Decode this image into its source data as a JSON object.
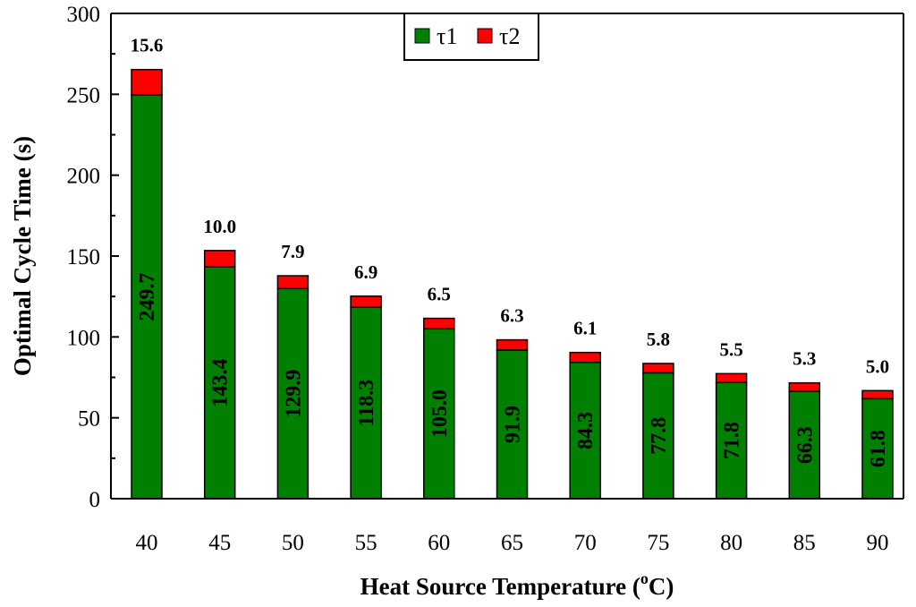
{
  "chart_data": {
    "type": "bar",
    "stacked": true,
    "title": "",
    "xlabel": "Heat Source Temperature",
    "xlabel_unit_open": "(",
    "xlabel_unit_sup": "o",
    "xlabel_unit_close": "C)",
    "ylabel": "Optimal Cycle Time (s)",
    "ylim": [
      0,
      300
    ],
    "yticks": [
      0,
      50,
      100,
      150,
      200,
      250,
      300
    ],
    "grid": false,
    "legend_position": "top-center",
    "categories": [
      "40",
      "45",
      "50",
      "55",
      "60",
      "65",
      "70",
      "75",
      "80",
      "85",
      "90"
    ],
    "series": [
      {
        "name": "τ1",
        "color": "#008000",
        "values": [
          249.7,
          143.4,
          129.9,
          118.3,
          105.0,
          91.9,
          84.3,
          77.8,
          71.8,
          66.3,
          61.8
        ],
        "labels": [
          "249.7",
          "143.4",
          "129.9",
          "118.3",
          "105.0",
          "91.9",
          "84.3",
          "77.8",
          "71.8",
          "66.3",
          "61.8"
        ]
      },
      {
        "name": "τ2",
        "color": "#ff0000",
        "values": [
          15.6,
          10.0,
          7.9,
          6.9,
          6.5,
          6.3,
          6.1,
          5.8,
          5.5,
          5.3,
          5.0
        ],
        "labels": [
          "15.6",
          "10.0",
          "7.9",
          "6.9",
          "6.5",
          "6.3",
          "6.1",
          "5.8",
          "5.5",
          "5.3",
          "5.0"
        ]
      }
    ]
  }
}
